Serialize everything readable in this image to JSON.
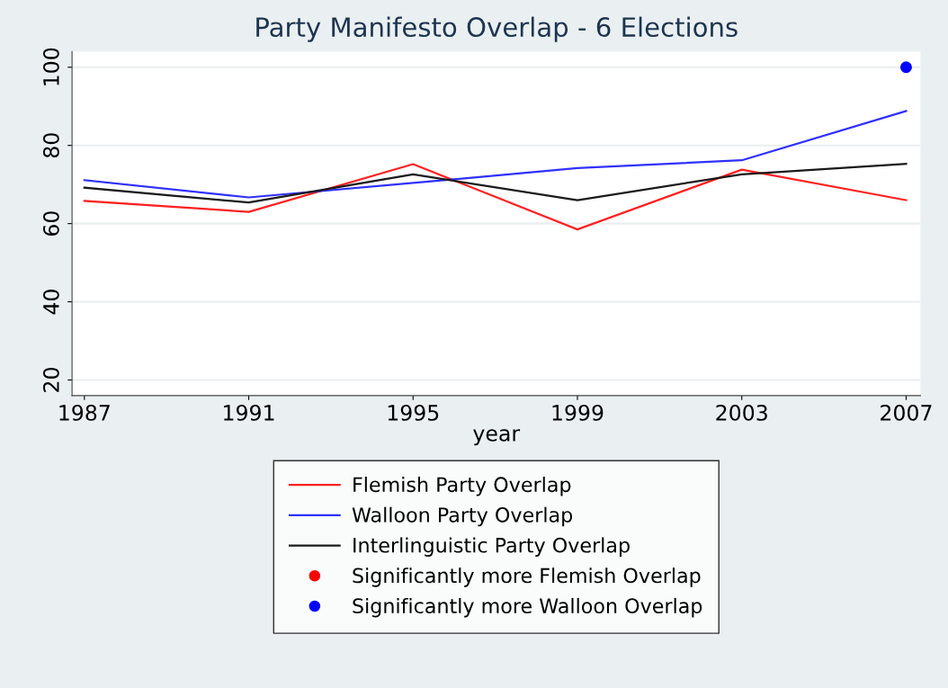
{
  "chart_data": {
    "type": "line",
    "title": "Party Manifesto Overlap - 6 Elections",
    "xlabel": "year",
    "x": [
      1987,
      1991,
      1995,
      1999,
      2003,
      2007
    ],
    "series": [
      {
        "name": "Flemish Party Overlap",
        "color": "#ff2020",
        "values": [
          65.8,
          63.0,
          75.2,
          58.5,
          73.8,
          66.0
        ]
      },
      {
        "name": "Walloon Party Overlap",
        "color": "#3030ff",
        "values": [
          71.1,
          66.7,
          70.4,
          74.2,
          76.2,
          88.8
        ]
      },
      {
        "name": "Interlinguistic Party Overlap",
        "color": "#1a1a1a",
        "values": [
          69.2,
          65.4,
          72.6,
          66.0,
          72.6,
          75.3
        ]
      },
      {
        "name": "Significantly more Flemish Overlap",
        "type": "scatter",
        "marker": "circle",
        "color": "#ff0000",
        "values": [
          null,
          null,
          null,
          null,
          null,
          null
        ]
      },
      {
        "name": "Significantly more Walloon Overlap",
        "type": "scatter",
        "marker": "circle",
        "color": "#0000ff",
        "values": [
          null,
          null,
          null,
          null,
          null,
          100
        ]
      }
    ],
    "xlim": [
      1986.7,
      2007.35
    ],
    "xticks": [
      1987,
      1991,
      1995,
      1999,
      2003,
      2007
    ],
    "ylim": [
      16,
      104
    ],
    "yticks": [
      20,
      40,
      60,
      80,
      100
    ],
    "grid": "y",
    "legend": "bottom",
    "marker": "none",
    "line_style": "solid"
  }
}
